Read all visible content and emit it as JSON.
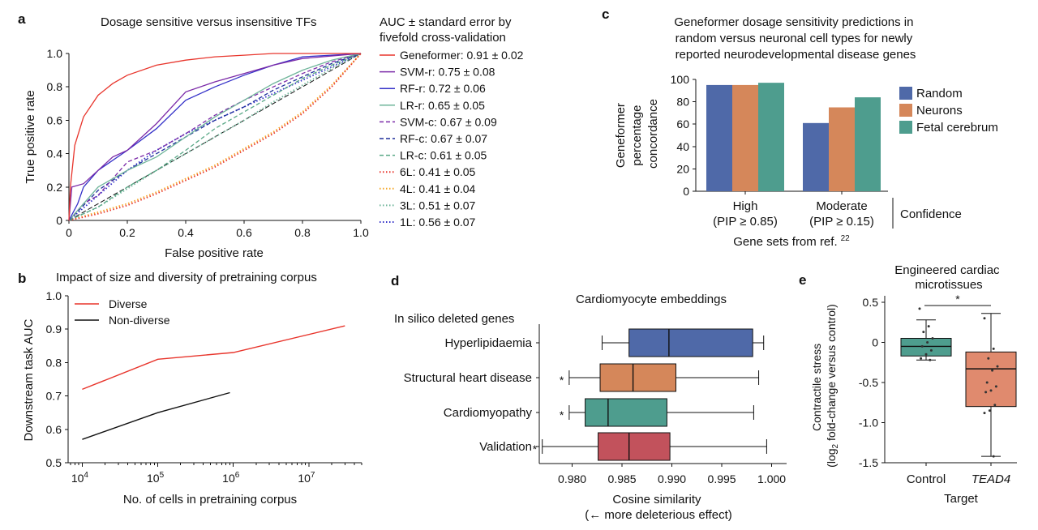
{
  "panel_labels": {
    "a": "a",
    "b": "b",
    "c": "c",
    "d": "d",
    "e": "e"
  },
  "chart_data": [
    {
      "id": "a",
      "type": "line",
      "title": "Dosage sensitive versus insensitive TFs",
      "xlabel": "False positive rate",
      "ylabel": "True positive rate",
      "xlim": [
        0,
        1
      ],
      "ylim": [
        0,
        1
      ],
      "xticks": [
        "0",
        "0.2",
        "0.4",
        "0.6",
        "0.8",
        "1.0"
      ],
      "yticks": [
        "0",
        "0.2",
        "0.4",
        "0.6",
        "0.8",
        "1.0"
      ],
      "grid": false,
      "legend_title": "AUC ± standard error by\nfivefold cross-validation",
      "legend_position": "right",
      "series": [
        {
          "name": "Geneformer: 0.91 ± 0.02",
          "color": "#e8352c",
          "dash": "solid",
          "x": [
            0,
            0.005,
            0.02,
            0.05,
            0.1,
            0.15,
            0.2,
            0.3,
            0.4,
            0.5,
            0.6,
            0.7,
            1.0
          ],
          "y": [
            0,
            0.2,
            0.45,
            0.62,
            0.75,
            0.82,
            0.87,
            0.93,
            0.96,
            0.98,
            0.99,
            1.0,
            1.0
          ]
        },
        {
          "name": "SVM-r: 0.75 ± 0.08",
          "color": "#7b2aa8",
          "dash": "solid",
          "x": [
            0,
            0.01,
            0.05,
            0.1,
            0.15,
            0.2,
            0.3,
            0.4,
            0.5,
            0.6,
            0.7,
            0.8,
            1.0
          ],
          "y": [
            0,
            0.2,
            0.22,
            0.3,
            0.38,
            0.42,
            0.58,
            0.77,
            0.83,
            0.88,
            0.93,
            0.97,
            1.0
          ]
        },
        {
          "name": "RF-r: 0.72 ± 0.06",
          "color": "#3431c8",
          "dash": "solid",
          "x": [
            0,
            0.03,
            0.05,
            0.1,
            0.2,
            0.3,
            0.4,
            0.5,
            0.6,
            0.7,
            0.8,
            0.9,
            1.0
          ],
          "y": [
            0,
            0.1,
            0.2,
            0.3,
            0.42,
            0.55,
            0.72,
            0.8,
            0.87,
            0.93,
            0.98,
            0.99,
            1.0
          ]
        },
        {
          "name": "LR-r: 0.65 ± 0.05",
          "color": "#6fb59a",
          "dash": "solid",
          "x": [
            0,
            0.1,
            0.2,
            0.3,
            0.4,
            0.5,
            0.6,
            0.7,
            0.8,
            0.9,
            1.0
          ],
          "y": [
            0,
            0.2,
            0.3,
            0.38,
            0.5,
            0.62,
            0.72,
            0.82,
            0.9,
            0.96,
            1.0
          ]
        },
        {
          "name": "SVM-c: 0.67 ± 0.09",
          "color": "#7b2aa8",
          "dash": "dashed",
          "x": [
            0,
            0.05,
            0.1,
            0.2,
            0.3,
            0.4,
            0.5,
            0.6,
            0.7,
            0.8,
            0.9,
            1.0
          ],
          "y": [
            0,
            0.1,
            0.15,
            0.35,
            0.42,
            0.52,
            0.63,
            0.72,
            0.8,
            0.88,
            0.95,
            1.0
          ]
        },
        {
          "name": "RF-c: 0.67 ± 0.07",
          "color": "#1e2f9a",
          "dash": "dashed",
          "x": [
            0,
            0.1,
            0.2,
            0.3,
            0.4,
            0.5,
            0.6,
            0.7,
            0.8,
            0.9,
            1.0
          ],
          "y": [
            0,
            0.18,
            0.3,
            0.4,
            0.5,
            0.6,
            0.68,
            0.78,
            0.86,
            0.94,
            1.0
          ]
        },
        {
          "name": "LR-c: 0.61 ± 0.05",
          "color": "#58a886",
          "dash": "dashed",
          "x": [
            0,
            0.1,
            0.2,
            0.3,
            0.4,
            0.5,
            0.6,
            0.7,
            0.8,
            0.9,
            1.0
          ],
          "y": [
            0,
            0.08,
            0.2,
            0.3,
            0.42,
            0.55,
            0.65,
            0.75,
            0.85,
            0.93,
            1.0
          ]
        },
        {
          "name": "6L: 0.41 ± 0.05",
          "color": "#e8352c",
          "dash": "dotted",
          "x": [
            0,
            0.1,
            0.2,
            0.3,
            0.4,
            0.5,
            0.6,
            0.7,
            0.8,
            0.9,
            1.0
          ],
          "y": [
            0,
            0.04,
            0.09,
            0.16,
            0.24,
            0.32,
            0.42,
            0.52,
            0.64,
            0.8,
            1.0
          ]
        },
        {
          "name": "4L: 0.41 ± 0.04",
          "color": "#f5a623",
          "dash": "dotted",
          "x": [
            0,
            0.1,
            0.2,
            0.3,
            0.4,
            0.5,
            0.6,
            0.7,
            0.8,
            0.9,
            1.0
          ],
          "y": [
            0,
            0.05,
            0.1,
            0.17,
            0.25,
            0.33,
            0.43,
            0.53,
            0.65,
            0.81,
            1.0
          ]
        },
        {
          "name": "3L: 0.51 ± 0.07",
          "color": "#6fb59a",
          "dash": "dotted",
          "x": [
            0,
            0.1,
            0.2,
            0.3,
            0.4,
            0.5,
            0.6,
            0.7,
            0.8,
            0.9,
            1.0
          ],
          "y": [
            0,
            0.08,
            0.19,
            0.3,
            0.4,
            0.5,
            0.6,
            0.71,
            0.81,
            0.91,
            1.0
          ]
        },
        {
          "name": "1L: 0.56 ± 0.07",
          "color": "#3431c8",
          "dash": "dotted",
          "x": [
            0,
            0.1,
            0.2,
            0.3,
            0.4,
            0.5,
            0.6,
            0.7,
            0.8,
            0.9,
            1.0
          ],
          "y": [
            0,
            0.15,
            0.3,
            0.42,
            0.52,
            0.6,
            0.68,
            0.76,
            0.84,
            0.92,
            1.0
          ]
        }
      ]
    },
    {
      "id": "b",
      "type": "line",
      "title": "Impact of size and diversity of pretraining corpus",
      "xlabel": "No. of cells in pretraining corpus",
      "ylabel": "Downstream task AUC",
      "xscale": "log",
      "xlim": [
        6500,
        50000000
      ],
      "ylim": [
        0.5,
        1.0
      ],
      "xticks": [
        {
          "base": "10",
          "exp": "4",
          "value": 10000
        },
        {
          "base": "10",
          "exp": "5",
          "value": 100000
        },
        {
          "base": "10",
          "exp": "6",
          "value": 1000000
        },
        {
          "base": "10",
          "exp": "7",
          "value": 10000000
        }
      ],
      "yticks": [
        "0.5",
        "0.6",
        "0.7",
        "0.8",
        "0.9",
        "1.0"
      ],
      "legend_position": "top-left",
      "series": [
        {
          "name": "Diverse",
          "color": "#e8352c",
          "x": [
            10000,
            100000,
            1000000,
            30000000
          ],
          "y": [
            0.72,
            0.81,
            0.83,
            0.91
          ]
        },
        {
          "name": "Non-diverse",
          "color": "#111111",
          "x": [
            10000,
            100000,
            900000
          ],
          "y": [
            0.57,
            0.65,
            0.71
          ]
        }
      ]
    },
    {
      "id": "c",
      "type": "bar",
      "title": "Geneformer dosage sensitivity predictions in\nrandom versus neuronal cell types for newly\nreported neurodevelopmental disease genes",
      "ylabel": "Geneformer\npercentage\nconcordance",
      "xlabel": "Gene sets from ref.",
      "xlabel_superscript": "22",
      "bracket_label": "Confidence",
      "ylim": [
        0,
        100
      ],
      "yticks": [
        "0",
        "20",
        "40",
        "60",
        "80",
        "100"
      ],
      "categories": [
        "High\n(PIP ≥ 0.85)",
        "Moderate\n(PIP ≥ 0.15)"
      ],
      "legend_position": "right",
      "series": [
        {
          "name": "Random",
          "color": "#4f69a8",
          "values": [
            95,
            61
          ]
        },
        {
          "name": "Neurons",
          "color": "#d5875a",
          "values": [
            95,
            75
          ]
        },
        {
          "name": "Fetal cerebrum",
          "color": "#4e9d8e",
          "values": [
            97,
            84
          ]
        }
      ]
    },
    {
      "id": "d",
      "type": "box",
      "title": "Cardiomyocyte embeddings",
      "ylabel_title": "In silico deleted genes",
      "xlabel": "Cosine similarity\n(← more deleterious effect)",
      "xlim": [
        0.9767,
        1.0015
      ],
      "xticks": [
        "0.980",
        "0.985",
        "0.990",
        "0.995",
        "1.000"
      ],
      "boxes": [
        {
          "name": "Hyperlipidaemia",
          "color": "#4f69a8",
          "whisker_low": 0.983,
          "q1": 0.9857,
          "median": 0.9897,
          "q3": 0.9981,
          "whisker_high": 0.9992,
          "star": ""
        },
        {
          "name": "Structural heart disease",
          "color": "#d5875a",
          "whisker_low": 0.9797,
          "q1": 0.9828,
          "median": 0.9861,
          "q3": 0.9904,
          "whisker_high": 0.9987,
          "star": "*"
        },
        {
          "name": "Cardiomyopathy",
          "color": "#4e9d8e",
          "whisker_low": 0.9797,
          "q1": 0.9813,
          "median": 0.9836,
          "q3": 0.9895,
          "whisker_high": 0.9982,
          "star": "*"
        },
        {
          "name": "Validation",
          "color": "#c2525c",
          "whisker_low": 0.977,
          "q1": 0.9826,
          "median": 0.9857,
          "q3": 0.9898,
          "whisker_high": 0.9995,
          "star": "*"
        }
      ]
    },
    {
      "id": "e",
      "type": "box",
      "title": "Engineered cardiac\nmicrotissues",
      "ylabel": "Contractile stress\n(log2 fold-change versus control)",
      "xlabel": "Target",
      "ylim": [
        -1.5,
        0.58
      ],
      "yticks": [
        "0.5",
        "0",
        "-0.5",
        "-1.0",
        "-1.5"
      ],
      "significance": "*",
      "boxes": [
        {
          "name": "Control",
          "italic": false,
          "color": "#4e9d8e",
          "whisker_low": -0.22,
          "q1": -0.17,
          "median": -0.05,
          "q3": 0.05,
          "whisker_high": 0.28,
          "points": [
            0.42,
            0.2,
            0.13,
            0.05,
            0.0,
            -0.05,
            -0.1,
            -0.15,
            -0.2,
            -0.22
          ]
        },
        {
          "name": "TEAD4",
          "italic": true,
          "color": "#e08a6e",
          "whisker_low": -1.42,
          "q1": -0.8,
          "median": -0.33,
          "q3": -0.12,
          "whisker_high": 0.36,
          "points": [
            0.3,
            -0.08,
            -0.2,
            -0.3,
            -0.35,
            -0.5,
            -0.55,
            -0.6,
            -0.62,
            -0.78,
            -0.85,
            -0.88,
            -1.42
          ]
        }
      ]
    }
  ]
}
